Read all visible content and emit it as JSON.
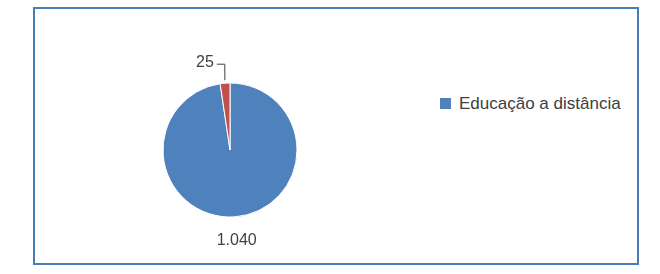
{
  "chart_data": {
    "type": "pie",
    "categories": [
      "Educação a distância",
      null
    ],
    "values": [
      1040,
      25
    ],
    "value_labels": [
      "1.040",
      "25"
    ],
    "colors": [
      "#4f81bd",
      "#c0504d"
    ],
    "legend": "right",
    "data_labels": true
  }
}
